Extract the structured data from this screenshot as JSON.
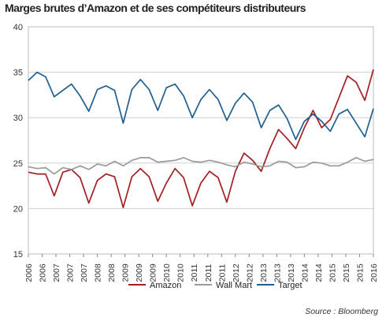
{
  "chart_data": {
    "type": "line",
    "title": "Marges brutes d’Amazon et de ses compétiteurs distributeurs",
    "source": "Source : Bloomberg",
    "xlabel": "",
    "ylabel": "",
    "ylim": [
      15,
      40
    ],
    "yticks": [
      15,
      20,
      25,
      30,
      35,
      40
    ],
    "xlim": [
      2006,
      2016
    ],
    "xticks": [
      "2006",
      "2006",
      "2007",
      "2007",
      "2007",
      "2008",
      "2008",
      "2009",
      "2009",
      "2009",
      "2010",
      "2010",
      "2011",
      "2011",
      "2011",
      "2012",
      "2012",
      "2013",
      "2013",
      "2013",
      "2014",
      "2014",
      "2015",
      "2015",
      "2015",
      "2016"
    ],
    "grid": "horizontal",
    "legend_position": "bottom-center",
    "series": [
      {
        "name": "Amazon",
        "color": "#a31e23",
        "values": [
          24.0,
          23.8,
          23.8,
          21.4,
          24.0,
          24.3,
          23.4,
          20.6,
          23.1,
          23.8,
          23.5,
          20.1,
          23.5,
          24.4,
          23.5,
          20.8,
          22.8,
          24.4,
          23.4,
          20.3,
          22.8,
          24.1,
          23.4,
          20.7,
          24.1,
          26.1,
          25.3,
          24.1,
          26.6,
          28.7,
          27.7,
          26.6,
          28.9,
          30.8,
          28.9,
          29.8,
          32.2,
          34.6,
          33.9,
          31.9,
          35.3
        ]
      },
      {
        "name": "Wall Mart",
        "color": "#9a9a9a",
        "values": [
          24.6,
          24.4,
          24.5,
          23.8,
          24.5,
          24.3,
          24.7,
          24.3,
          24.9,
          24.7,
          25.2,
          24.7,
          25.3,
          25.6,
          25.6,
          25.1,
          25.2,
          25.3,
          25.6,
          25.2,
          25.1,
          25.3,
          25.1,
          24.8,
          24.6,
          25.1,
          24.9,
          24.6,
          24.7,
          25.2,
          25.1,
          24.5,
          24.6,
          25.1,
          25.0,
          24.7,
          24.7,
          25.1,
          25.6,
          25.2,
          25.4
        ]
      },
      {
        "name": "Target",
        "color": "#1f5e8e",
        "values": [
          34.1,
          35.0,
          34.5,
          32.3,
          33.0,
          33.7,
          32.4,
          30.7,
          33.1,
          33.5,
          33.0,
          29.4,
          33.1,
          34.2,
          33.1,
          30.8,
          33.3,
          33.7,
          32.4,
          30.0,
          32.0,
          33.1,
          32.0,
          29.7,
          31.6,
          32.7,
          31.7,
          28.9,
          30.8,
          31.4,
          29.9,
          27.6,
          29.6,
          30.4,
          29.6,
          28.5,
          30.4,
          30.9,
          29.4,
          27.9,
          31.0
        ]
      }
    ]
  }
}
